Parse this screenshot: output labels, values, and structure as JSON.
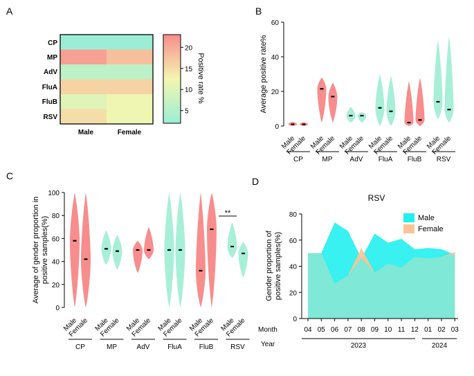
{
  "chart_data": [
    {
      "panel": "A",
      "type": "heatmap",
      "rows": [
        "CP",
        "MP",
        "AdV",
        "FluA",
        "FluB",
        "RSV"
      ],
      "columns": [
        "Male",
        "Female"
      ],
      "values": [
        [
          1,
          1
        ],
        [
          21,
          18
        ],
        [
          6,
          6
        ],
        [
          16,
          16
        ],
        [
          10,
          12
        ],
        [
          15,
          12
        ]
      ],
      "colorbar": {
        "label": "Positive rate %",
        "ticks": [
          5,
          10,
          15,
          20
        ],
        "range": [
          2,
          23
        ],
        "colors": [
          "#9beed5",
          "#f3f6b0",
          "#f88d8d"
        ]
      }
    },
    {
      "panel": "B",
      "type": "violin",
      "ylabel": "Average positive rate%",
      "ylim": [
        0,
        60
      ],
      "yticks": [
        0,
        20,
        40,
        60
      ],
      "groups": [
        "CP",
        "MP",
        "AdV",
        "FluA",
        "FluB",
        "RSV"
      ],
      "sexes": [
        "Male",
        "Female"
      ],
      "medians": [
        [
          1,
          1
        ],
        [
          21.5,
          17
        ],
        [
          6,
          6
        ],
        [
          10.5,
          8.5
        ],
        [
          2,
          3.5
        ],
        [
          14,
          9.5
        ]
      ],
      "ranges": [
        [
          [
            0,
            2.5
          ],
          [
            0,
            2.2
          ]
        ],
        [
          [
            2,
            28
          ],
          [
            2,
            25
          ]
        ],
        [
          [
            2,
            11
          ],
          [
            2,
            8
          ]
        ],
        [
          [
            0,
            30
          ],
          [
            0,
            29
          ]
        ],
        [
          [
            0,
            26
          ],
          [
            0,
            28
          ]
        ],
        [
          [
            4,
            50
          ],
          [
            2,
            52
          ]
        ]
      ],
      "colors": [
        "#f88d8d",
        "#f88d8d",
        "#a8efd8",
        "#a8efd8",
        "#f88d8d",
        "#a8efd8"
      ]
    },
    {
      "panel": "C",
      "type": "violin",
      "ylabel": "Average of gender proportion in positive samples(%)",
      "ylim": [
        0,
        100
      ],
      "yticks": [
        0,
        20,
        40,
        60,
        80,
        100
      ],
      "groups": [
        "CP",
        "MP",
        "AdV",
        "FluA",
        "FluB",
        "RSV"
      ],
      "sexes": [
        "Male",
        "Female"
      ],
      "medians": [
        [
          58,
          42
        ],
        [
          51,
          49
        ],
        [
          50,
          50
        ],
        [
          50,
          50
        ],
        [
          32,
          68
        ],
        [
          53,
          47
        ]
      ],
      "ranges": [
        [
          [
            0,
            100
          ],
          [
            0,
            100
          ]
        ],
        [
          [
            37,
            67
          ],
          [
            33,
            63
          ]
        ],
        [
          [
            30,
            58
          ],
          [
            42,
            70
          ]
        ],
        [
          [
            0,
            100
          ],
          [
            0,
            100
          ]
        ],
        [
          [
            0,
            100
          ],
          [
            0,
            100
          ]
        ],
        [
          [
            43,
            74
          ],
          [
            26,
            57
          ]
        ]
      ],
      "colors": [
        "#f88d8d",
        "#a8efd8",
        "#f88d8d",
        "#a8efd8",
        "#f88d8d",
        "#a8efd8"
      ],
      "significance": {
        "group": "RSV",
        "label": "**"
      }
    },
    {
      "panel": "D",
      "type": "area",
      "title": "RSV",
      "ylabel": "Gender proportion of positive samples(%)",
      "ylim": [
        0,
        80
      ],
      "yticks": [
        0,
        20,
        40,
        60,
        80
      ],
      "row_labels": [
        "Month",
        "Year"
      ],
      "x": [
        "04",
        "05",
        "06",
        "07",
        "08",
        "09",
        "10",
        "11",
        "12",
        "01",
        "02",
        "03"
      ],
      "years": [
        {
          "label": "2023",
          "span": [
            "04",
            "12"
          ]
        },
        {
          "label": "2024",
          "span": [
            "01",
            "03"
          ]
        }
      ],
      "series": [
        {
          "name": "Male",
          "color": "#22f0ee",
          "values": [
            50,
            50,
            73.5,
            67,
            46,
            65,
            58,
            61,
            53,
            54,
            53,
            49
          ]
        },
        {
          "name": "Female",
          "color": "#fcc496",
          "values": [
            50,
            50,
            26.5,
            33,
            54,
            35,
            42,
            39,
            47,
            46,
            47,
            51
          ]
        }
      ]
    }
  ],
  "panel_letters": [
    "A",
    "B",
    "C",
    "D"
  ]
}
